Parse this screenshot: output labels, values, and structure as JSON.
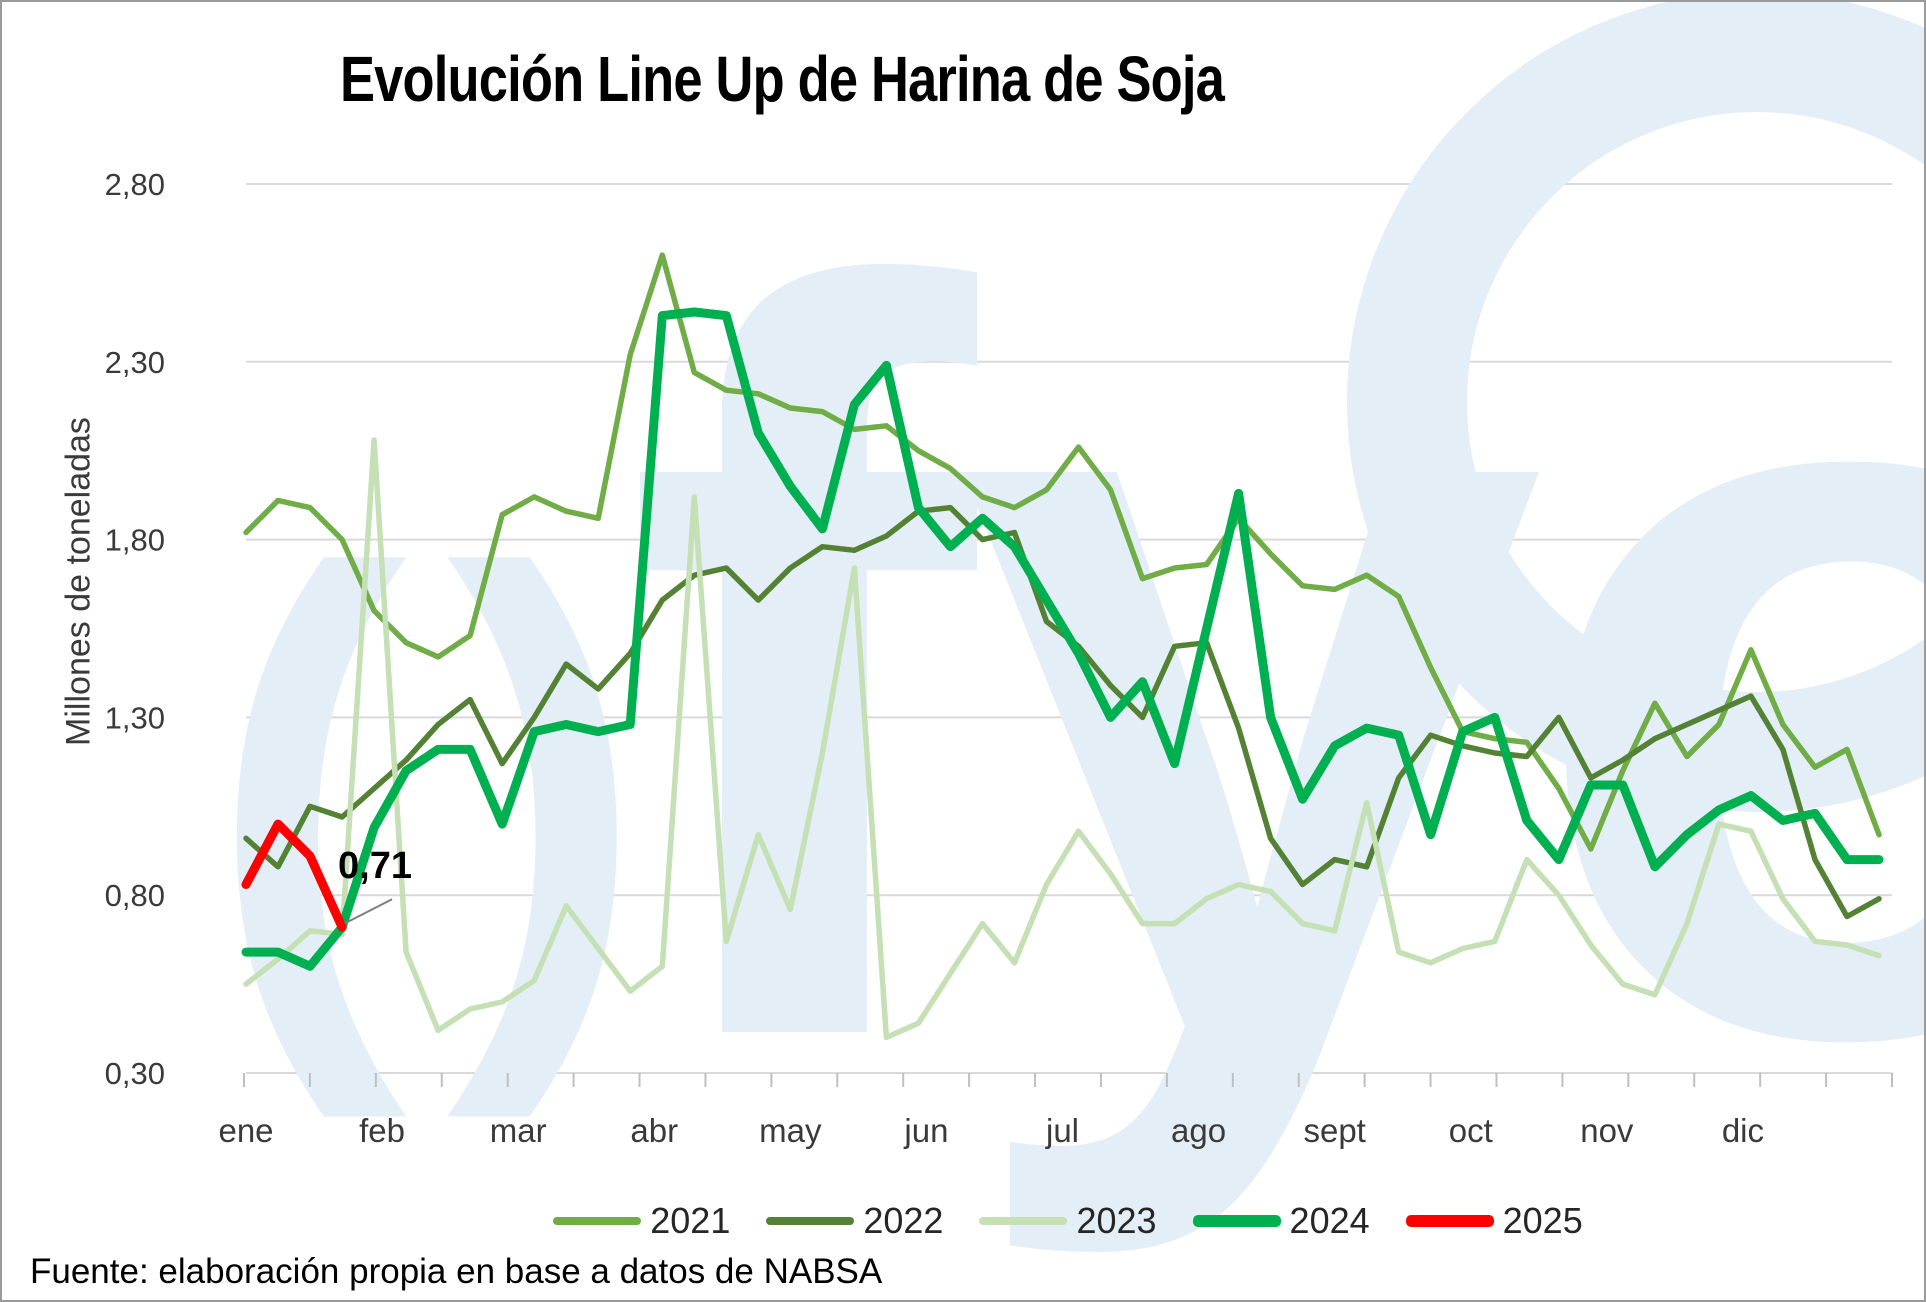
{
  "title": "Evolución Line Up de Harina de Soja",
  "y_axis_title": "Millones de toneladas",
  "source": "Fuente: elaboración propia en base a datos de NABSA",
  "watermark": "fyo",
  "annotation": {
    "text": "0,71",
    "series": "2025",
    "week_index": 3,
    "value": 0.71
  },
  "legend": {
    "items": [
      {
        "label": "2021",
        "color": "#70AD47",
        "thick": false
      },
      {
        "label": "2022",
        "color": "#548235",
        "thick": false
      },
      {
        "label": "2023",
        "color": "#C5E0B4",
        "thick": false
      },
      {
        "label": "2024",
        "color": "#00B050",
        "thick": true
      },
      {
        "label": "2025",
        "color": "#FF0000",
        "thick": true
      }
    ]
  },
  "chart_data": {
    "type": "line",
    "title": "Evolución Line Up de Harina de Soja",
    "xlabel": "",
    "ylabel": "Millones de toneladas",
    "x_unit": "week",
    "weeks": 52,
    "categories": [
      "ene",
      "feb",
      "mar",
      "abr",
      "may",
      "jun",
      "jul",
      "ago",
      "sept",
      "oct",
      "nov",
      "dic"
    ],
    "y_ticks": [
      {
        "value": 2.8,
        "label": "2,80"
      },
      {
        "value": 2.3,
        "label": "2,30"
      },
      {
        "value": 1.8,
        "label": "1,80"
      },
      {
        "value": 1.3,
        "label": "1,30"
      },
      {
        "value": 0.8,
        "label": "0,80"
      },
      {
        "value": 0.3,
        "label": "0,30"
      }
    ],
    "ylim": [
      0.3,
      2.8
    ],
    "grid": true,
    "legend_position": "bottom",
    "grid_color": "#D9D9D9",
    "tick_color": "#BFBFBF",
    "series": [
      {
        "name": "2021",
        "color": "#70AD47",
        "emphasis": false,
        "values": [
          1.82,
          1.91,
          1.89,
          1.8,
          1.6,
          1.51,
          1.47,
          1.53,
          1.87,
          1.92,
          1.88,
          1.86,
          2.32,
          2.6,
          2.27,
          2.22,
          2.21,
          2.17,
          2.16,
          2.11,
          2.12,
          2.05,
          2.0,
          1.92,
          1.89,
          1.94,
          2.06,
          1.94,
          1.69,
          1.72,
          1.73,
          1.86,
          1.76,
          1.67,
          1.66,
          1.7,
          1.64,
          1.44,
          1.26,
          1.24,
          1.23,
          1.1,
          0.93,
          1.15,
          1.34,
          1.19,
          1.28,
          1.49,
          1.28,
          1.16,
          1.21,
          0.97
        ]
      },
      {
        "name": "2022",
        "color": "#548235",
        "emphasis": false,
        "values": [
          0.96,
          0.88,
          1.05,
          1.02,
          1.1,
          1.18,
          1.28,
          1.35,
          1.17,
          1.3,
          1.45,
          1.38,
          1.48,
          1.63,
          1.7,
          1.72,
          1.63,
          1.72,
          1.78,
          1.77,
          1.81,
          1.88,
          1.89,
          1.8,
          1.82,
          1.57,
          1.5,
          1.39,
          1.3,
          1.5,
          1.51,
          1.27,
          0.96,
          0.83,
          0.9,
          0.88,
          1.13,
          1.25,
          1.22,
          1.2,
          1.19,
          1.3,
          1.13,
          1.18,
          1.24,
          1.28,
          1.32,
          1.36,
          1.21,
          0.9,
          0.74,
          0.79
        ]
      },
      {
        "name": "2023",
        "color": "#C5E0B4",
        "emphasis": false,
        "values": [
          0.55,
          0.62,
          0.7,
          0.69,
          2.08,
          0.64,
          0.42,
          0.48,
          0.5,
          0.56,
          0.77,
          0.65,
          0.53,
          0.6,
          1.92,
          0.67,
          0.97,
          0.76,
          1.2,
          1.72,
          0.4,
          0.44,
          0.58,
          0.72,
          0.61,
          0.83,
          0.98,
          0.86,
          0.72,
          0.72,
          0.79,
          0.83,
          0.81,
          0.72,
          0.7,
          1.06,
          0.64,
          0.61,
          0.65,
          0.67,
          0.9,
          0.8,
          0.66,
          0.55,
          0.52,
          0.72,
          1.0,
          0.98,
          0.79,
          0.67,
          0.66,
          0.63
        ]
      },
      {
        "name": "2024",
        "color": "#00B050",
        "emphasis": true,
        "values": [
          0.64,
          0.64,
          0.6,
          0.71,
          0.99,
          1.15,
          1.21,
          1.21,
          1.0,
          1.26,
          1.28,
          1.26,
          1.28,
          2.43,
          2.44,
          2.43,
          2.1,
          1.95,
          1.83,
          2.18,
          2.29,
          1.89,
          1.78,
          1.86,
          1.78,
          1.63,
          1.48,
          1.3,
          1.4,
          1.17,
          1.55,
          1.93,
          1.3,
          1.07,
          1.22,
          1.27,
          1.25,
          0.97,
          1.26,
          1.3,
          1.01,
          0.9,
          1.11,
          1.11,
          0.88,
          0.97,
          1.04,
          1.08,
          1.01,
          1.03,
          0.9,
          0.9
        ]
      },
      {
        "name": "2025",
        "color": "#FF0000",
        "emphasis": true,
        "values": [
          0.83,
          1.0,
          0.91,
          0.71
        ]
      }
    ]
  }
}
